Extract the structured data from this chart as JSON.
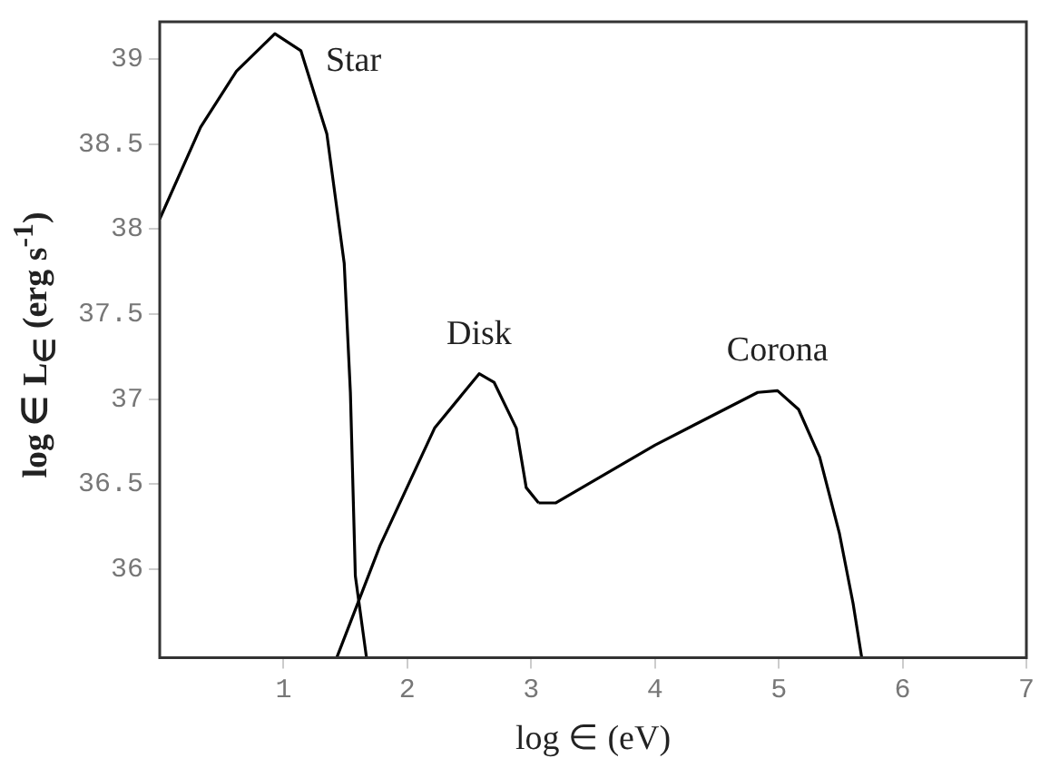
{
  "chart_data": {
    "type": "line",
    "xlabel": "log ∈ (eV)",
    "ylabel": "log ∈ L$_{∈}$ (erg s$^{-1}$)",
    "xlim": [
      0,
      7
    ],
    "xticks": [
      1,
      2,
      3,
      4,
      5,
      6,
      7
    ],
    "ylim": [
      35.48,
      39.22
    ],
    "yticks": [
      36,
      36.5,
      37,
      37.5,
      38,
      38.5,
      39
    ],
    "grid": false,
    "legend": false,
    "marker": "none",
    "line_style": "solid",
    "series": [
      {
        "name": "Star",
        "color": "#000000",
        "x": [
          0,
          0.33,
          0.62,
          0.93,
          1.14,
          1.35,
          1.49,
          1.54,
          1.58,
          1.67
        ],
        "values": [
          38.06,
          38.6,
          38.93,
          39.15,
          39.05,
          38.56,
          37.8,
          37.04,
          35.96,
          35.48
        ]
      },
      {
        "name": "Disk",
        "color": "#000000",
        "x": [
          1.43,
          1.78,
          2.22,
          2.58,
          2.7,
          2.88,
          2.96,
          3.06
        ],
        "values": [
          35.48,
          36.14,
          36.83,
          37.15,
          37.1,
          36.83,
          36.48,
          36.39
        ]
      },
      {
        "name": "Corona",
        "color": "#000000",
        "x": [
          3.06,
          3.2,
          4.0,
          4.83,
          4.99,
          5.16,
          5.33,
          5.49,
          5.6,
          5.67
        ],
        "values": [
          36.39,
          36.39,
          36.73,
          37.04,
          37.05,
          36.94,
          36.66,
          36.21,
          35.8,
          35.48
        ]
      }
    ]
  }
}
